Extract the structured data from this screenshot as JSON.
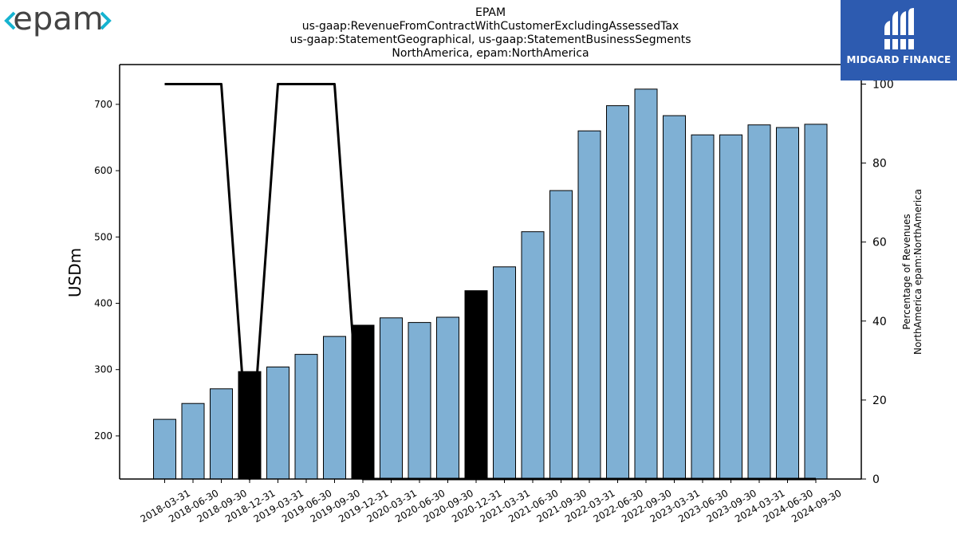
{
  "logos": {
    "left_text": "epam",
    "right_text": "MIDGARD FINANCE",
    "right_bg": "#2d5bb0",
    "left_accent": "#16b3d0"
  },
  "chart_data": {
    "type": "bar",
    "title_lines": [
      "EPAM",
      "us-gaap:RevenueFromContractWithCustomerExcludingAssessedTax",
      "us-gaap:StatementGeographical, us-gaap:StatementBusinessSegments",
      "NorthAmerica, epam:NorthAmerica"
    ],
    "ylabel": "USDm",
    "y2label_lines": [
      "Percentage of Revenues",
      "NorthAmerica epam:NorthAmerica"
    ],
    "ylim": [
      135,
      760
    ],
    "y2lim": [
      0,
      100
    ],
    "yticks": [
      200,
      300,
      400,
      500,
      600,
      700
    ],
    "y2ticks": [
      0,
      20,
      40,
      60,
      80,
      100
    ],
    "bar_color": "#7fb0d4",
    "highlight_color": "#000000",
    "categories": [
      "2018-03-31",
      "2018-06-30",
      "2018-09-30",
      "2018-12-31",
      "2019-03-31",
      "2019-06-30",
      "2019-09-30",
      "2019-12-31",
      "2020-03-31",
      "2020-06-30",
      "2020-09-30",
      "2020-12-31",
      "2021-03-31",
      "2021-06-30",
      "2021-09-30",
      "2022-03-31",
      "2022-06-30",
      "2022-09-30",
      "2023-03-31",
      "2023-06-30",
      "2023-09-30",
      "2024-03-31",
      "2024-06-30",
      "2024-09-30"
    ],
    "values": [
      225,
      249,
      271,
      297,
      304,
      323,
      350,
      367,
      378,
      371,
      379,
      419,
      455,
      508,
      570,
      660,
      698,
      723,
      683,
      654,
      654,
      669,
      665,
      670
    ],
    "highlighted": [
      false,
      false,
      false,
      true,
      false,
      false,
      false,
      true,
      false,
      false,
      false,
      true,
      false,
      false,
      false,
      false,
      false,
      false,
      false,
      false,
      false,
      false,
      false,
      false
    ],
    "series": [
      {
        "type": "line",
        "axis": "right",
        "color": "#000000",
        "values": [
          100,
          100,
          100,
          0,
          100,
          100,
          100,
          0,
          0,
          0,
          0,
          0,
          0,
          0,
          0,
          0,
          0,
          0,
          0,
          0,
          0,
          0,
          0,
          0
        ]
      }
    ],
    "grid": false
  }
}
